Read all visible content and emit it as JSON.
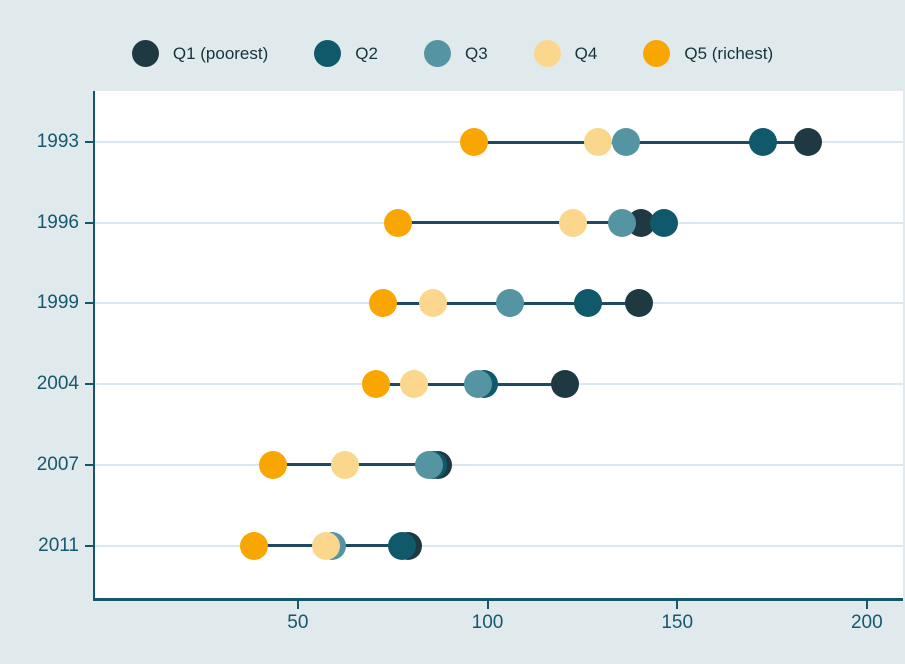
{
  "chart_data": {
    "type": "scatter",
    "subtype": "dumbbell-dot-plot",
    "title": "",
    "xlabel": "",
    "ylabel": "",
    "categories": [
      "1993",
      "1996",
      "1999",
      "2004",
      "2007",
      "2011"
    ],
    "series": [
      {
        "name": "Q1 (poorest)",
        "color": "#1f3942",
        "values": [
          184,
          140,
          139.5,
          120,
          86.5,
          78.5
        ]
      },
      {
        "name": "Q2",
        "color": "#10596b",
        "values": [
          172,
          146,
          126,
          98.5,
          85,
          77
        ]
      },
      {
        "name": "Q3",
        "color": "#5595a3",
        "values": [
          136,
          135,
          105.5,
          97,
          84,
          58.5
        ]
      },
      {
        "name": "Q4",
        "color": "#fbd78e",
        "values": [
          128.5,
          122,
          85,
          80,
          62,
          57
        ]
      },
      {
        "name": "Q5 (richest)",
        "color": "#f9a602",
        "values": [
          96,
          76,
          72,
          70,
          43,
          38
        ]
      }
    ],
    "x_ticks": [
      50,
      100,
      150,
      200
    ],
    "xlim": [
      -4,
      209
    ],
    "grid": true,
    "legend_position": "top",
    "connector_color": "#1e4a61",
    "colors": {
      "figure_background": "#e0eaec",
      "plot_background": "#ffffff",
      "axis_spine": "#14576b",
      "tick_label": "#16586d",
      "legend_text": "#17323d",
      "gridline": "#dae6f0"
    }
  }
}
